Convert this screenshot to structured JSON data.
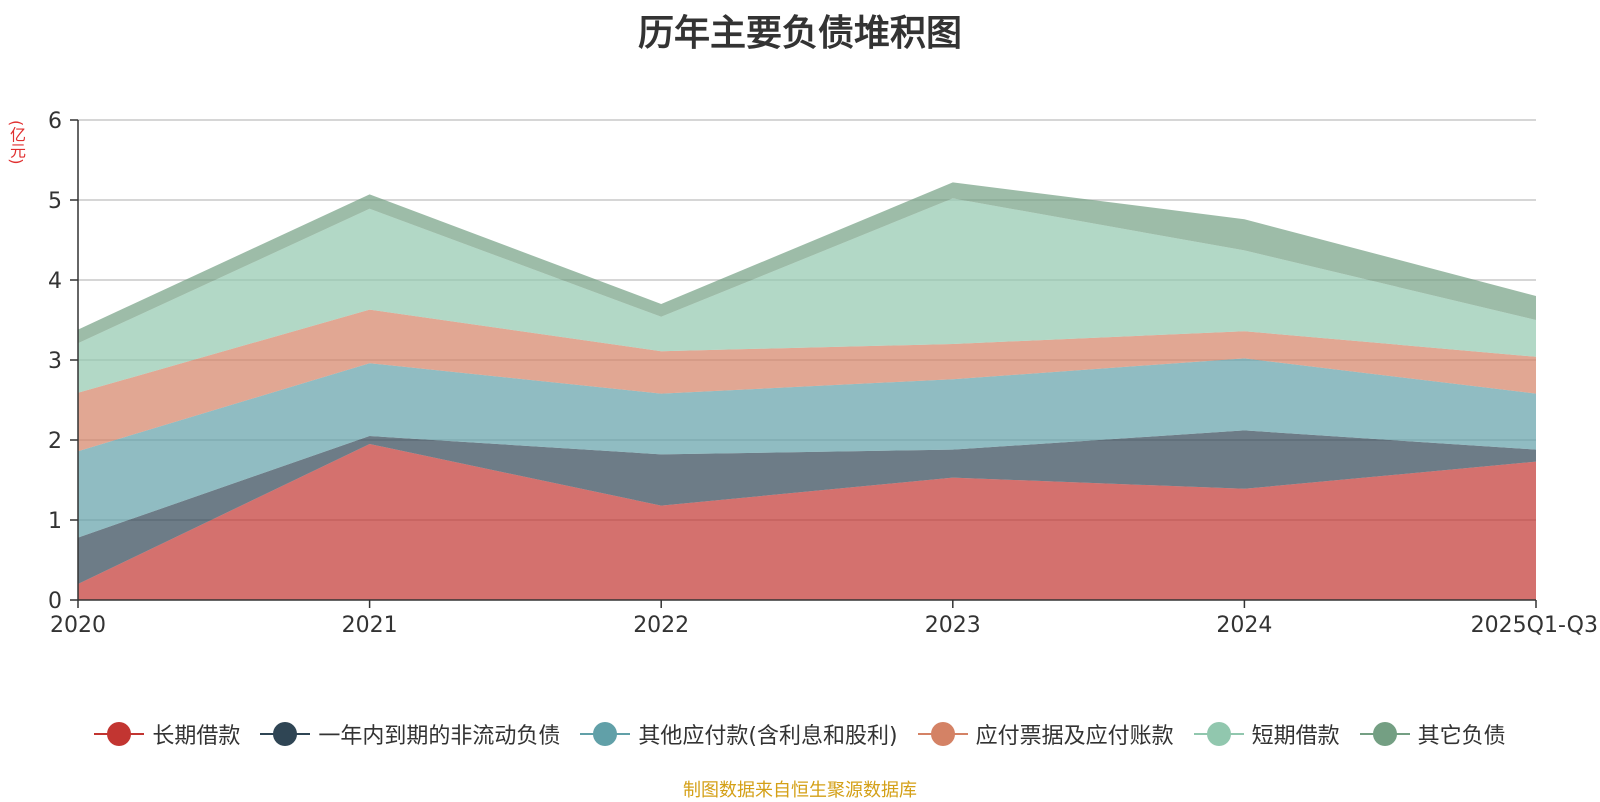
{
  "chart_data": {
    "type": "area",
    "stacked": true,
    "title": "历年主要负债堆积图",
    "unit_label": "(亿元)",
    "xlabel": "",
    "ylabel": "(亿元)",
    "ylim": [
      0,
      6
    ],
    "yticks": [
      0,
      1,
      2,
      3,
      4,
      5,
      6
    ],
    "grid": true,
    "legend_position": "bottom",
    "categories": [
      "2020",
      "2021",
      "2022",
      "2023",
      "2024",
      "2025Q1-Q3"
    ],
    "series": [
      {
        "name": "长期借款",
        "color": "#c23531",
        "values": [
          0.2,
          1.95,
          1.18,
          1.53,
          1.39,
          1.73
        ]
      },
      {
        "name": "一年内到期的非流动负债",
        "color": "#2f4554",
        "values": [
          0.58,
          0.1,
          0.64,
          0.35,
          0.73,
          0.15
        ]
      },
      {
        "name": "其他应付款(含利息和股利)",
        "color": "#61a0a8",
        "values": [
          1.08,
          0.91,
          0.76,
          0.88,
          0.9,
          0.7
        ]
      },
      {
        "name": "应付票据及应付账款",
        "color": "#d48265",
        "values": [
          0.73,
          0.67,
          0.53,
          0.44,
          0.34,
          0.46
        ]
      },
      {
        "name": "短期借款",
        "color": "#91c7ae",
        "values": [
          0.62,
          1.26,
          0.43,
          1.82,
          1.01,
          0.46
        ]
      },
      {
        "name": "其它负债",
        "color": "#749f83",
        "values": [
          0.17,
          0.18,
          0.16,
          0.2,
          0.39,
          0.3
        ]
      }
    ]
  },
  "source_text": "制图数据来自恒生聚源数据库"
}
